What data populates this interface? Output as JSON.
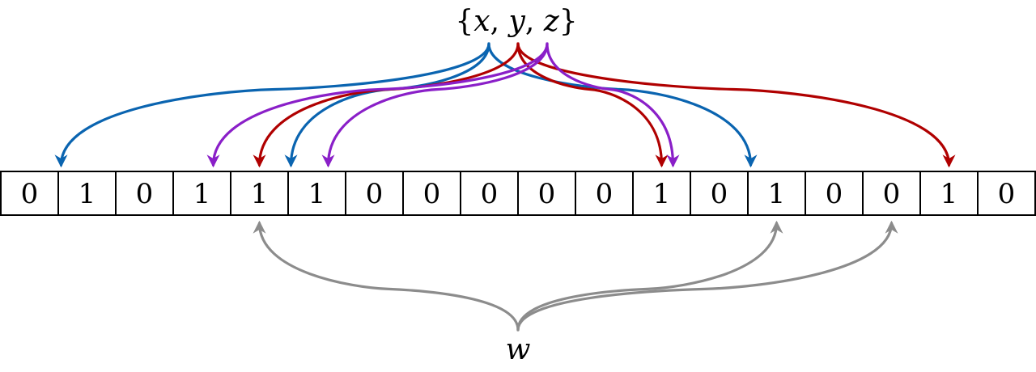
{
  "set_label": {
    "open_brace": "{",
    "x": "x",
    "sep1": ", ",
    "y": "y",
    "sep2": ", ",
    "z": "z",
    "close_brace": "}"
  },
  "query_label": "w",
  "bit_array": [
    "0",
    "1",
    "0",
    "1",
    "1",
    "1",
    "0",
    "0",
    "0",
    "0",
    "0",
    "1",
    "0",
    "1",
    "0",
    "0",
    "1",
    "0"
  ],
  "colors": {
    "x": "#0a64b0",
    "y": "#b00000",
    "z": "#8a1fc8",
    "w": "#8c8c8c",
    "cell_border": "#000000"
  },
  "mappings": {
    "x": [
      1,
      5,
      13
    ],
    "y": [
      4,
      11,
      16
    ],
    "z": [
      3,
      5,
      11
    ],
    "w": [
      4,
      13,
      15
    ]
  }
}
